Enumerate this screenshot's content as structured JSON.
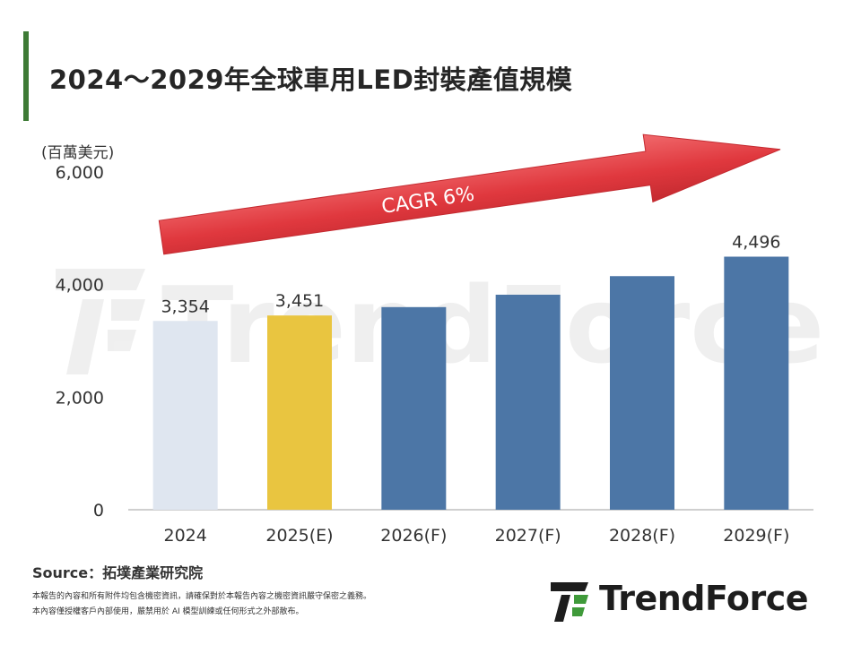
{
  "title": "2024～2029年全球車用LED封裝產值規模",
  "source": "Source：拓墣產業研究院",
  "notes": [
    "本報告的內容和所有附件均包含機密資訊，請確保對於本報告內容之機密資訊嚴守保密之義務。",
    "本內容僅授權客戶內部使用，嚴禁用於 AI 模型訓練或任何形式之外部散布。"
  ],
  "brand": {
    "name": "TrendForce",
    "watermark": "TrendForce"
  },
  "chart_data": {
    "type": "bar",
    "unit_label": "(百萬美元)",
    "categories": [
      "2024",
      "2025(E)",
      "2026(F)",
      "2027(F)",
      "2028(F)",
      "2029(F)"
    ],
    "values": [
      3354,
      3451,
      3600,
      3820,
      4150,
      4496
    ],
    "data_labels": [
      "3,354",
      "3,451",
      "",
      "",
      "",
      "4,496"
    ],
    "ylim": [
      0,
      6000
    ],
    "yticks": [
      0,
      2000,
      4000,
      6000
    ],
    "ytick_labels": [
      "0",
      "2,000",
      "4,000",
      "6,000"
    ],
    "bar_colors": [
      "#dfe6f0",
      "#e9c540",
      "#4c76a6",
      "#4c76a6",
      "#4c76a6",
      "#4c76a6"
    ],
    "annotation": "CAGR 6%",
    "annotation_color": "#e0383e",
    "grid": false
  }
}
